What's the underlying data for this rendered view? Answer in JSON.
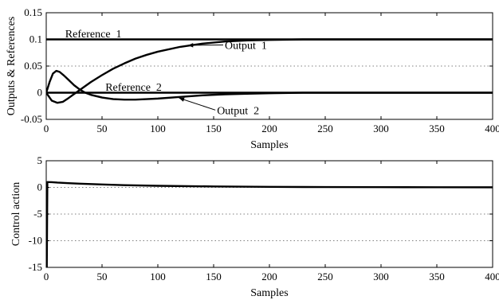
{
  "chart_data": [
    {
      "type": "line",
      "xlabel": "Samples",
      "ylabel": "Outputs & References",
      "xlim": [
        0,
        400
      ],
      "ylim": [
        -0.05,
        0.15
      ],
      "xticks": [
        "0",
        "50",
        "100",
        "150",
        "200",
        "250",
        "300",
        "350",
        "400"
      ],
      "yticks": [
        "-0.05",
        "0",
        "0.05",
        "0.1",
        "0.15"
      ],
      "grid": "dotted",
      "series": [
        {
          "name": "Reference 1",
          "x": [
            0,
            400
          ],
          "y": [
            0.1,
            0.1
          ]
        },
        {
          "name": "Reference 2",
          "x": [
            0,
            400
          ],
          "y": [
            0,
            0
          ]
        },
        {
          "name": "Output 1",
          "x": [
            0,
            5,
            10,
            15,
            20,
            30,
            40,
            50,
            60,
            70,
            80,
            90,
            100,
            120,
            140,
            160,
            180,
            200,
            230,
            260,
            300,
            350,
            400
          ],
          "y": [
            0,
            -0.015,
            -0.019,
            -0.017,
            -0.01,
            0.005,
            0.02,
            0.033,
            0.045,
            0.055,
            0.064,
            0.071,
            0.077,
            0.086,
            0.092,
            0.096,
            0.098,
            0.099,
            0.1,
            0.1,
            0.1,
            0.1,
            0.1
          ]
        },
        {
          "name": "Output 2",
          "x": [
            0,
            3,
            6,
            9,
            12,
            16,
            20,
            25,
            30,
            35,
            40,
            50,
            60,
            70,
            80,
            90,
            100,
            120,
            140,
            160,
            180,
            200,
            230,
            260,
            300,
            350,
            400
          ],
          "y": [
            0,
            0.02,
            0.036,
            0.041,
            0.039,
            0.032,
            0.024,
            0.014,
            0.006,
            0.0,
            -0.004,
            -0.009,
            -0.012,
            -0.013,
            -0.013,
            -0.012,
            -0.011,
            -0.008,
            -0.005,
            -0.003,
            -0.002,
            -0.001,
            0,
            0,
            0,
            0,
            0
          ]
        }
      ],
      "annotations": [
        {
          "text": "Reference  1",
          "x": 17,
          "y": 0.104,
          "target": null
        },
        {
          "text": "Output  1",
          "x": 160,
          "y": 0.082,
          "target": [
            127,
            0.089
          ]
        },
        {
          "text": "Reference  2",
          "x": 53,
          "y": 0.004,
          "target": null
        },
        {
          "text": "Output  2",
          "x": 153,
          "y": -0.04,
          "target": [
            119,
            -0.01
          ]
        }
      ]
    },
    {
      "type": "line",
      "xlabel": "Samples",
      "ylabel": "Control  action",
      "xlim": [
        0,
        400
      ],
      "ylim": [
        -15,
        5
      ],
      "xticks": [
        "0",
        "50",
        "100",
        "150",
        "200",
        "250",
        "300",
        "350",
        "400"
      ],
      "yticks": [
        "-15",
        "-10",
        "-5",
        "0",
        "5"
      ],
      "grid": "dotted",
      "series": [
        {
          "name": "",
          "x": [
            0,
            0.5,
            1,
            2,
            5,
            10,
            20,
            30,
            50,
            70,
            100,
            150,
            200,
            250,
            300,
            350,
            400
          ],
          "y": [
            -15,
            -15,
            1.0,
            1.0,
            0.98,
            0.9,
            0.8,
            0.7,
            0.55,
            0.42,
            0.3,
            0.18,
            0.1,
            0.06,
            0.04,
            0.03,
            0.02
          ]
        }
      ],
      "annotations": []
    }
  ]
}
